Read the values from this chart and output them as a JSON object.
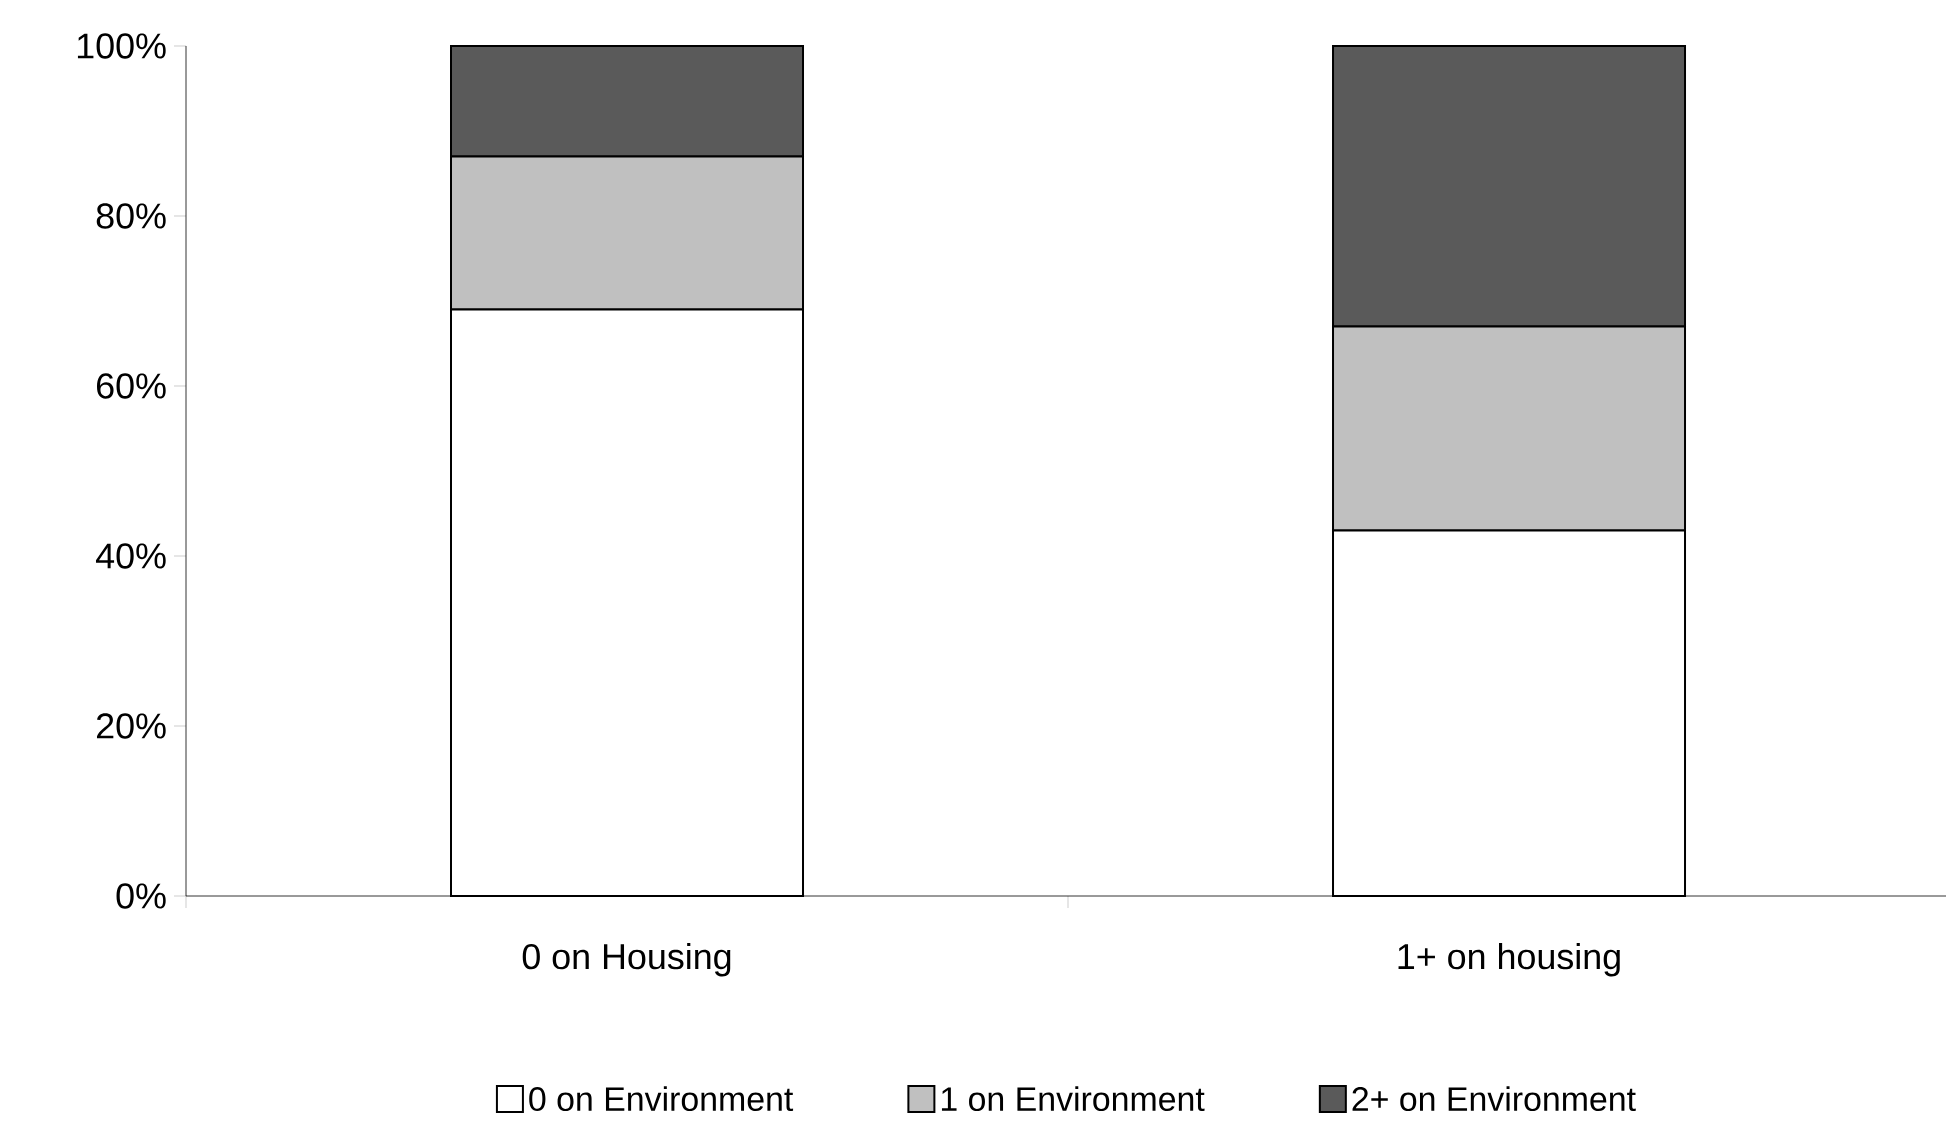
{
  "chart_data": {
    "type": "bar",
    "stacked": true,
    "categories": [
      "0 on Housing",
      "1+ on housing"
    ],
    "series": [
      {
        "name": "0 on Environment",
        "color": "#ffffff",
        "values": [
          69,
          43
        ]
      },
      {
        "name": "1 on Environment",
        "color": "#c0c0c0",
        "values": [
          18,
          24
        ]
      },
      {
        "name": "2+ on Environment",
        "color": "#5a5a5a",
        "values": [
          13,
          33
        ]
      }
    ],
    "ylim": [
      0,
      100
    ],
    "yticks": [
      {
        "value": 0,
        "label": "0%"
      },
      {
        "value": 20,
        "label": "20%"
      },
      {
        "value": 40,
        "label": "40%"
      },
      {
        "value": 60,
        "label": "60%"
      },
      {
        "value": 80,
        "label": "80%"
      },
      {
        "value": 100,
        "label": "100%"
      }
    ],
    "legend": "bottom"
  }
}
